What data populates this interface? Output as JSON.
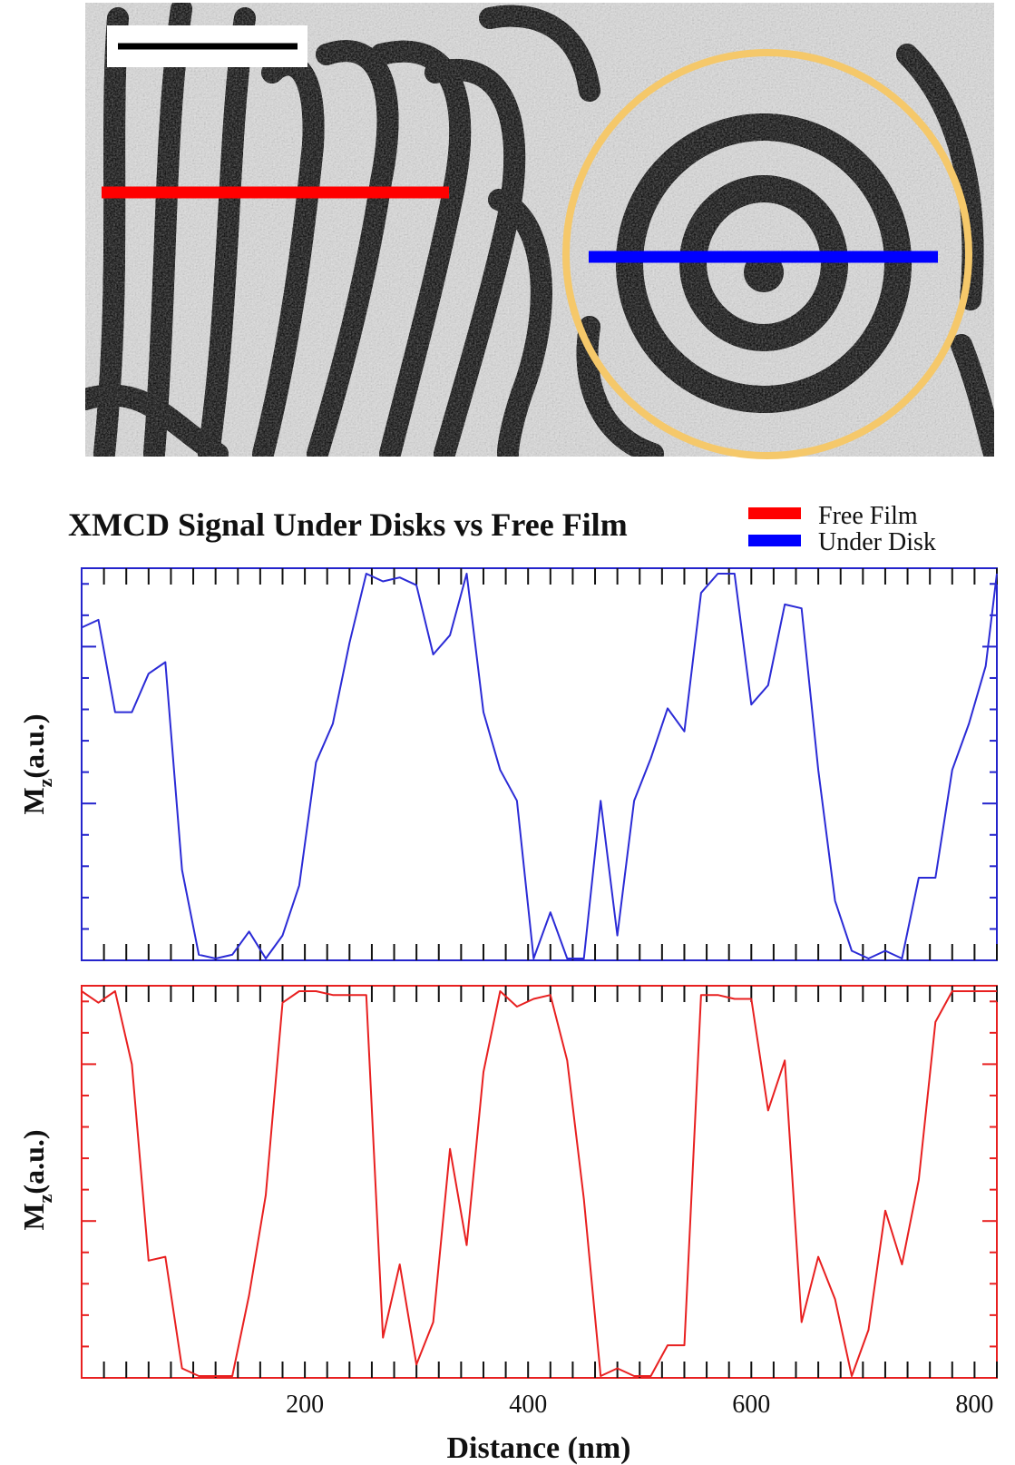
{
  "chart_data": [
    {
      "type": "line",
      "title": "XMCD Signal Under Disks vs Free Film",
      "ylabel": "M",
      "ylabel_sub": "z",
      "ylabel_unit": "(a.u.)",
      "xlabel": "",
      "xlim": [
        0,
        820
      ],
      "ylim": [
        0,
        1
      ],
      "grid": false,
      "legend": {
        "placement": "top-right",
        "entries": [
          {
            "name": "Free Film",
            "color": "#ff0000"
          },
          {
            "name": "Under Disk",
            "color": "#0000ff"
          }
        ]
      },
      "series": [
        {
          "name": "Under Disk",
          "color": "#2b2bd6",
          "x": [
            0,
            15,
            30,
            45,
            60,
            75,
            90,
            105,
            120,
            135,
            150,
            165,
            180,
            195,
            210,
            225,
            240,
            255,
            270,
            285,
            300,
            315,
            330,
            345,
            360,
            375,
            390,
            405,
            420,
            435,
            450,
            465,
            480,
            495,
            510,
            525,
            540,
            555,
            570,
            585,
            600,
            615,
            630,
            645,
            660,
            675,
            690,
            705,
            720,
            735,
            750,
            765,
            780,
            795,
            810,
            820
          ],
          "y": [
            0.86,
            0.88,
            0.64,
            0.64,
            0.74,
            0.77,
            0.23,
            0.01,
            0.0,
            0.01,
            0.07,
            0.0,
            0.06,
            0.19,
            0.51,
            0.61,
            0.82,
            1.0,
            0.98,
            0.99,
            0.97,
            0.79,
            0.84,
            1.0,
            0.64,
            0.49,
            0.41,
            0.0,
            0.12,
            0.0,
            0.0,
            0.41,
            0.06,
            0.41,
            0.52,
            0.65,
            0.59,
            0.95,
            1.0,
            1.0,
            0.66,
            0.71,
            0.92,
            0.91,
            0.49,
            0.15,
            0.02,
            0.0,
            0.02,
            0.0,
            0.21,
            0.21,
            0.49,
            0.61,
            0.76,
            1.0
          ]
        }
      ]
    },
    {
      "type": "line",
      "title": "",
      "ylabel": "M",
      "ylabel_sub": "z",
      "ylabel_unit": "(a.u.)",
      "xlabel": "Distance (nm)",
      "xlim": [
        0,
        820
      ],
      "ylim": [
        0,
        1
      ],
      "xticks": [
        200,
        400,
        600,
        800
      ],
      "grid": false,
      "series": [
        {
          "name": "Free Film",
          "color": "#e82020",
          "x": [
            0,
            15,
            30,
            45,
            60,
            75,
            90,
            105,
            120,
            135,
            150,
            165,
            180,
            195,
            210,
            225,
            240,
            255,
            270,
            285,
            300,
            315,
            330,
            345,
            360,
            375,
            390,
            405,
            420,
            435,
            450,
            465,
            480,
            495,
            510,
            525,
            540,
            555,
            570,
            585,
            600,
            615,
            630,
            645,
            660,
            675,
            690,
            705,
            720,
            735,
            750,
            765,
            780,
            795,
            810,
            820
          ],
          "y": [
            1.0,
            0.97,
            1.0,
            0.81,
            0.3,
            0.31,
            0.02,
            0.0,
            0.0,
            0.0,
            0.21,
            0.47,
            0.97,
            1.0,
            1.0,
            0.99,
            0.99,
            0.99,
            0.1,
            0.29,
            0.03,
            0.14,
            0.59,
            0.34,
            0.79,
            1.0,
            0.96,
            0.98,
            0.99,
            0.82,
            0.46,
            0.0,
            0.02,
            0.0,
            0.0,
            0.08,
            0.08,
            0.99,
            0.99,
            0.98,
            0.98,
            0.69,
            0.82,
            0.14,
            0.31,
            0.2,
            0.0,
            0.12,
            0.43,
            0.29,
            0.51,
            0.92,
            1.0,
            1.0,
            1.0,
            1.0
          ]
        }
      ]
    }
  ]
}
